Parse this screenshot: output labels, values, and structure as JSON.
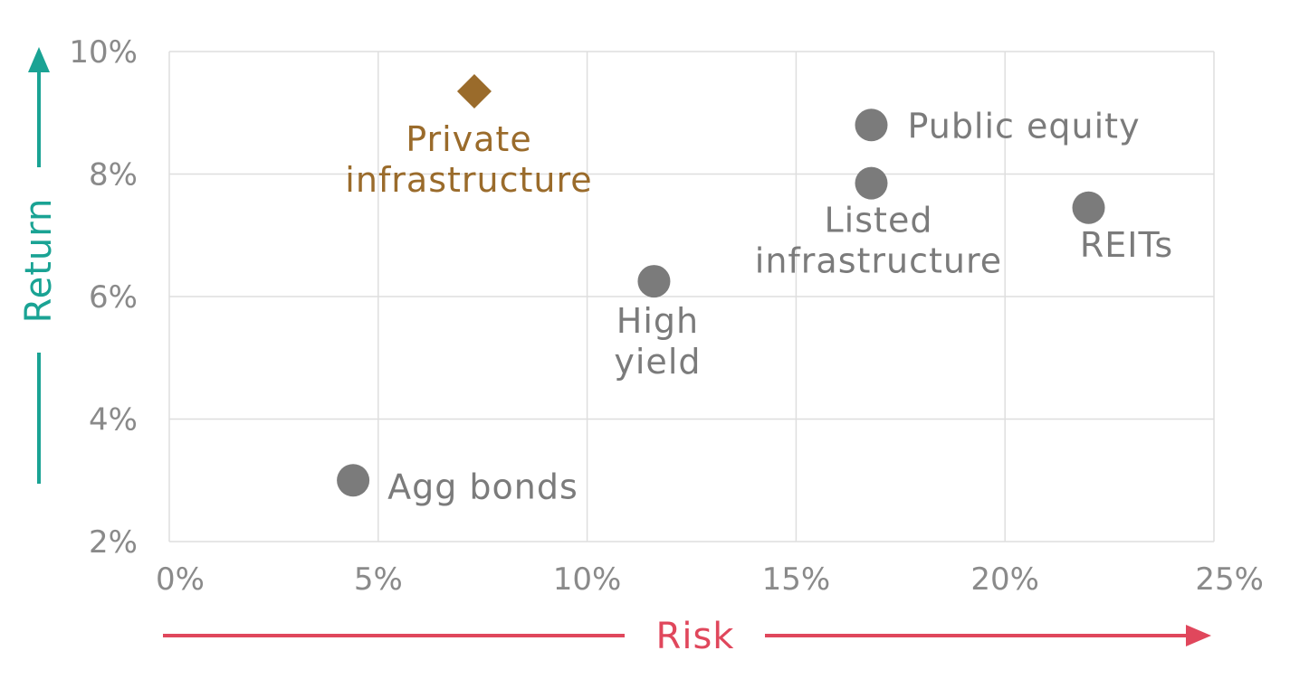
{
  "colors": {
    "grid": "#dedede",
    "point": "#7b7b7b",
    "highlight": "#9a6b2b",
    "return_axis": "#1aa394",
    "risk_axis": "#e0475c",
    "tick": "#8a8a8a"
  },
  "chart_data": {
    "type": "scatter",
    "xlabel": "Risk",
    "ylabel": "Return",
    "xlim": [
      0,
      25
    ],
    "ylim": [
      2,
      10
    ],
    "x_ticks": [
      "0%",
      "5%",
      "10%",
      "15%",
      "20%",
      "25%"
    ],
    "y_ticks": [
      "2%",
      "4%",
      "6%",
      "8%",
      "10%"
    ],
    "grid": true,
    "points": [
      {
        "label_lines": [
          "Private",
          "infrastructure"
        ],
        "x": 7.3,
        "y": 9.35,
        "marker": "diamond",
        "highlight": true
      },
      {
        "label_lines": [
          "Public equity"
        ],
        "x": 16.8,
        "y": 8.8,
        "marker": "circle",
        "highlight": false
      },
      {
        "label_lines": [
          "Listed",
          "infrastructure"
        ],
        "x": 16.8,
        "y": 7.85,
        "marker": "circle",
        "highlight": false
      },
      {
        "label_lines": [
          "REITs"
        ],
        "x": 22.0,
        "y": 7.45,
        "marker": "circle",
        "highlight": false
      },
      {
        "label_lines": [
          "High",
          "yield"
        ],
        "x": 11.6,
        "y": 6.25,
        "marker": "circle",
        "highlight": false
      },
      {
        "label_lines": [
          "Agg bonds"
        ],
        "x": 4.4,
        "y": 3.0,
        "marker": "circle",
        "highlight": false
      }
    ]
  }
}
